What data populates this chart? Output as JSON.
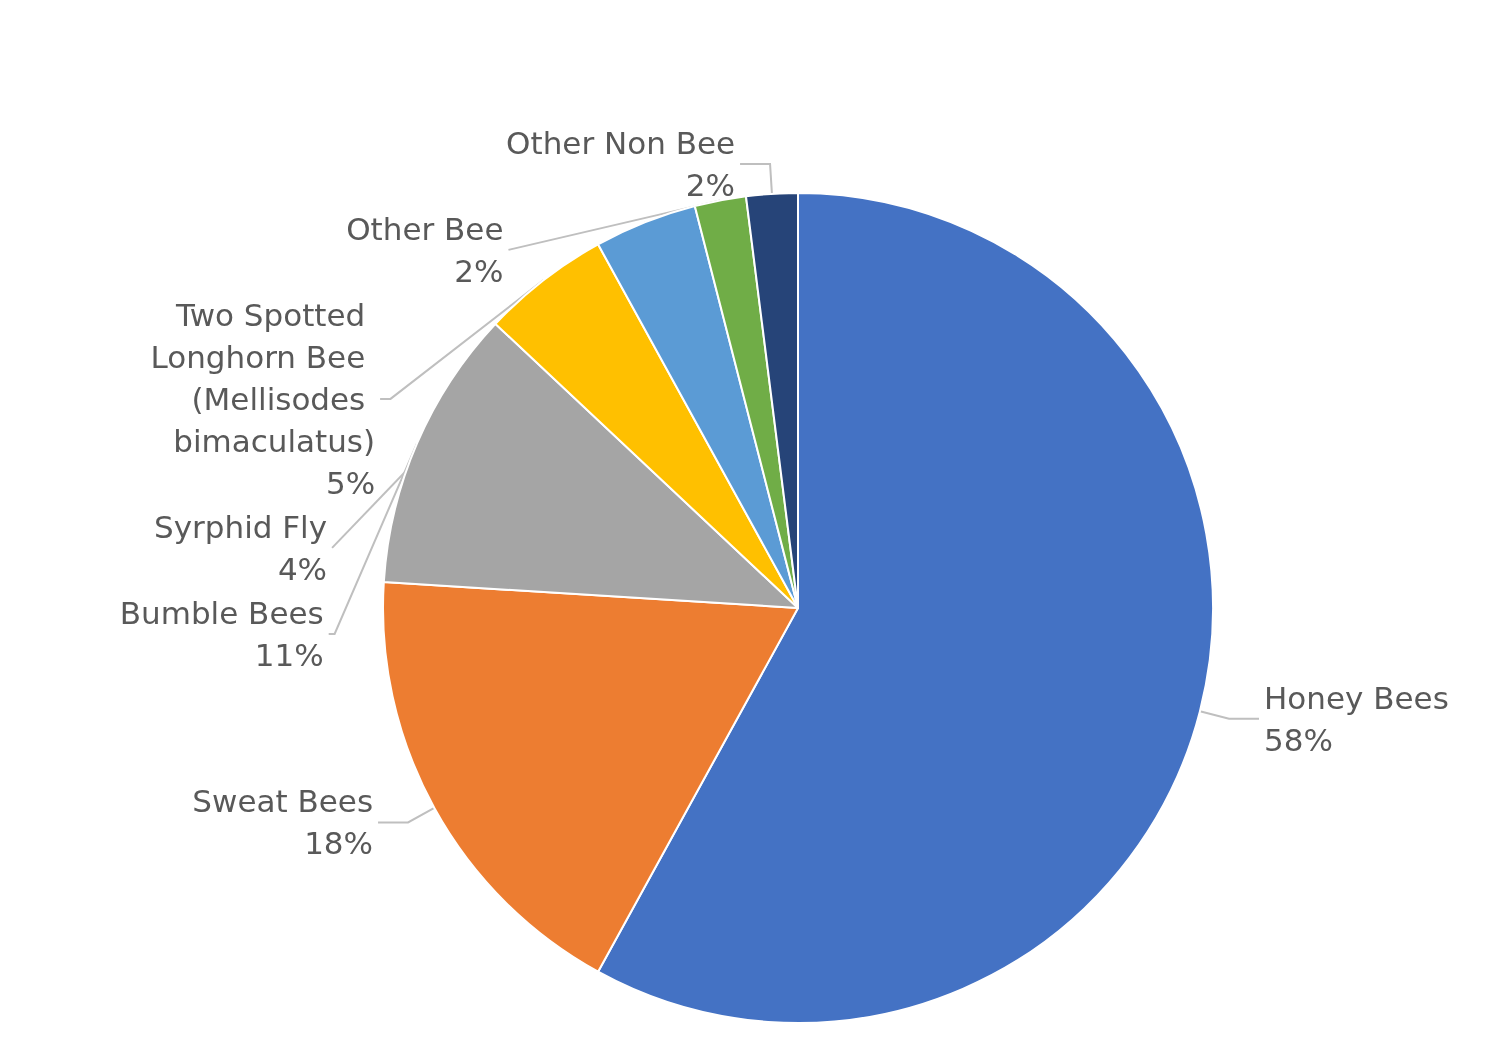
{
  "chart_data": {
    "type": "pie",
    "categories": [
      "Honey Bees",
      "Sweat Bees",
      "Bumble Bees",
      "Two Spotted Longhorn Bee (Mellisodes bimaculatus)",
      "Syrphid Fly",
      "Other Bee",
      "Other Non Bee"
    ],
    "values": [
      58,
      18,
      11,
      5,
      4,
      2,
      2
    ],
    "colors": [
      "#4472c4",
      "#ed7d31",
      "#a5a5a5",
      "#ffc000",
      "#5b9bd5",
      "#70ad47",
      "#264478"
    ],
    "value_labels": [
      "58%",
      "18%",
      "11%",
      "5%",
      "4%",
      "2%",
      "2%"
    ],
    "legend": false
  }
}
